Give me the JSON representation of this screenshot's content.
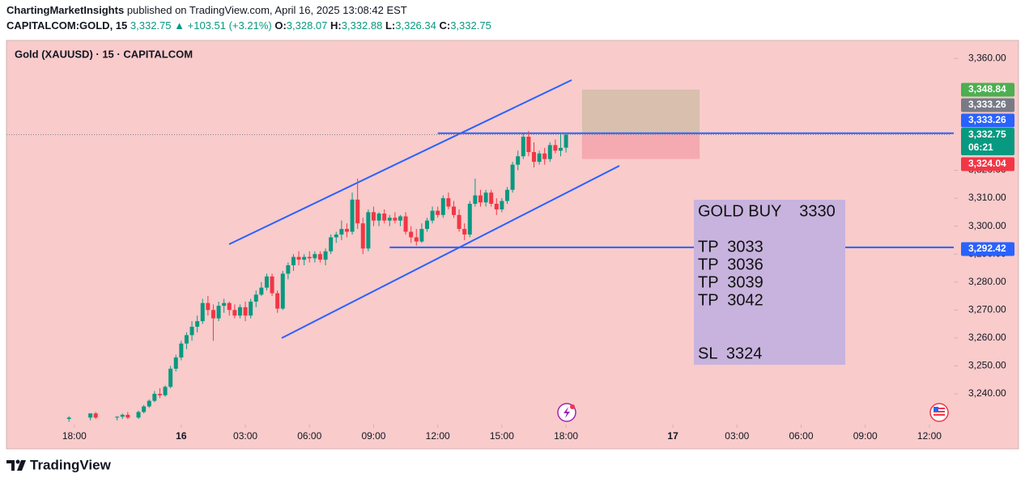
{
  "header": {
    "author": "ChartingMarketInsights",
    "published": "published on TradingView.com, April 16, 2025 13:08:42 EST",
    "symbol": "CAPITALCOM:GOLD, 15",
    "last": "3,332.75",
    "arrow": "▲",
    "change": "+103.51 (+3.21%)",
    "o_label": "O:",
    "open": "3,328.07",
    "h_label": "H:",
    "high": "3,332.88",
    "l_label": "L:",
    "low": "3,326.34",
    "c_label": "C:",
    "close": "3,332.75"
  },
  "footer": {
    "brand": "TradingView"
  },
  "chart_data": {
    "type": "candlestick",
    "title": "Gold (XAUUSD) · 15 · CAPITALCOM",
    "up_color": "#089981",
    "down_color": "#f23645",
    "x": [
      -1,
      3,
      4,
      8,
      9,
      10,
      12,
      13,
      14,
      15,
      16,
      17,
      18,
      19,
      20,
      21,
      22,
      23,
      24,
      25,
      26,
      27,
      28,
      29,
      30,
      31,
      32,
      33,
      34,
      35,
      36,
      37,
      38,
      39,
      40,
      41,
      42,
      43,
      44,
      45,
      46,
      47,
      48,
      49,
      50,
      51,
      52,
      53,
      54,
      55,
      56,
      57,
      58,
      59,
      60,
      61,
      62,
      63,
      64,
      65,
      66,
      67,
      68,
      69,
      70,
      71,
      72,
      73,
      74,
      75,
      76,
      77,
      78,
      79,
      80,
      81,
      82,
      83,
      84,
      85,
      86,
      87,
      88,
      89,
      90,
      91,
      92
    ],
    "open": [
      3231,
      3231.5,
      3233,
      3231.5,
      3231.8,
      3232.5,
      3231.5,
      3233.5,
      3235.5,
      3237.5,
      3240,
      3239.5,
      3242.5,
      3249,
      3253,
      3258,
      3261,
      3264,
      3266,
      3272.5,
      3270,
      3267,
      3271.5,
      3272.5,
      3270,
      3268,
      3271,
      3268,
      3273,
      3275.5,
      3278,
      3282,
      3276,
      3270.5,
      3283,
      3286,
      3289,
      3288,
      3289,
      3288.5,
      3290,
      3288,
      3291,
      3296,
      3297,
      3299,
      3298,
      3309.5,
      3301,
      3292,
      3305,
      3302,
      3304.5,
      3302,
      3303,
      3302,
      3303.5,
      3298,
      3296,
      3294.5,
      3299,
      3302,
      3305.5,
      3304,
      3310,
      3307,
      3304,
      3299,
      3297,
      3308,
      3311,
      3308.5,
      3312,
      3308,
      3306,
      3309,
      3313,
      3322,
      3325,
      3332,
      3326.5,
      3323,
      3326,
      3324,
      3329,
      3327,
      3328.07
    ],
    "high": [
      3232,
      3233,
      3233.5,
      3232,
      3233,
      3233.5,
      3234,
      3236,
      3238,
      3241,
      3242,
      3243,
      3250,
      3254,
      3259,
      3262,
      3266,
      3268,
      3274,
      3275,
      3272,
      3273,
      3274,
      3273,
      3272,
      3272,
      3273,
      3274,
      3277,
      3280,
      3283,
      3283,
      3277,
      3284,
      3287,
      3290,
      3291,
      3290,
      3291,
      3291,
      3291,
      3292,
      3297,
      3298,
      3302,
      3301,
      3312,
      3317,
      3303,
      3306,
      3307,
      3305,
      3306,
      3304,
      3305,
      3304,
      3305,
      3300,
      3299,
      3301,
      3303,
      3307,
      3307,
      3311,
      3312,
      3309,
      3306,
      3301,
      3309,
      3317,
      3313,
      3313,
      3313,
      3310,
      3310,
      3314,
      3323,
      3327,
      3333,
      3334,
      3330,
      3327,
      3328,
      3330,
      3331,
      3333,
      3332.88
    ],
    "low": [
      3230,
      3230.5,
      3231,
      3230.5,
      3231,
      3231,
      3231,
      3233,
      3235,
      3237,
      3238.5,
      3239,
      3242,
      3248,
      3252,
      3256,
      3259,
      3262,
      3265,
      3268,
      3259,
      3266,
      3269,
      3268,
      3267,
      3267,
      3266,
      3267,
      3271,
      3275,
      3277,
      3275,
      3269,
      3270,
      3281,
      3284,
      3286,
      3286,
      3287,
      3287,
      3287,
      3286,
      3290,
      3294,
      3295,
      3296,
      3297,
      3299,
      3290,
      3291,
      3300,
      3300,
      3301,
      3300,
      3301,
      3300,
      3297,
      3294,
      3293,
      3294,
      3298,
      3301,
      3303,
      3303,
      3306,
      3303,
      3298,
      3295,
      3296,
      3307,
      3307,
      3307,
      3307,
      3304,
      3305,
      3308,
      3312,
      3320,
      3324,
      3325,
      3321,
      3322,
      3322,
      3323,
      3326,
      3325,
      3326.34
    ],
    "close": [
      3231.5,
      3233,
      3231.5,
      3231.8,
      3232.5,
      3231.5,
      3233.5,
      3235.5,
      3237.5,
      3240,
      3239.5,
      3242.5,
      3249,
      3253,
      3258,
      3261,
      3264,
      3266,
      3272.5,
      3270,
      3267,
      3271.5,
      3272.5,
      3270,
      3268,
      3271,
      3268,
      3273,
      3275.5,
      3278,
      3282,
      3276,
      3270.5,
      3283,
      3286,
      3289,
      3288,
      3289,
      3288.5,
      3290,
      3288,
      3291,
      3296,
      3297,
      3299,
      3298,
      3309.5,
      3301,
      3292,
      3305,
      3302,
      3304.5,
      3302,
      3303,
      3302,
      3303.5,
      3298,
      3296,
      3294.5,
      3299,
      3302,
      3305.5,
      3304,
      3310,
      3307,
      3304,
      3299,
      3297,
      3308,
      3311,
      3308.5,
      3312,
      3308,
      3306,
      3309,
      3313,
      3322,
      3325,
      3332,
      3326.5,
      3323,
      3326,
      3324,
      3329,
      3327,
      3328,
      3332.75
    ],
    "xlim": [
      -12.7,
      164.1
    ],
    "xticks": [
      {
        "value": 0,
        "label": "18:00"
      },
      {
        "value": 20,
        "label": "16"
      },
      {
        "value": 32,
        "label": "03:00"
      },
      {
        "value": 44,
        "label": "06:00"
      },
      {
        "value": 56,
        "label": "09:00"
      },
      {
        "value": 68,
        "label": "12:00"
      },
      {
        "value": 80,
        "label": "15:00"
      },
      {
        "value": 92,
        "label": "18:00"
      },
      {
        "value": 112,
        "label": "17"
      },
      {
        "value": 124,
        "label": "03:00"
      },
      {
        "value": 136,
        "label": "06:00"
      },
      {
        "value": 148,
        "label": "09:00"
      },
      {
        "value": 160,
        "label": "12:00"
      }
    ],
    "ylim": [
      3229,
      3365
    ],
    "yticks": [
      {
        "value": 3240,
        "label": "3,240.00"
      },
      {
        "value": 3250,
        "label": "3,250.00"
      },
      {
        "value": 3260,
        "label": "3,260.00"
      },
      {
        "value": 3270,
        "label": "3,270.00"
      },
      {
        "value": 3280,
        "label": "3,280.00"
      },
      {
        "value": 3290,
        "label": "3,290.00"
      },
      {
        "value": 3300,
        "label": "3,300.00"
      },
      {
        "value": 3310,
        "label": "3,310.00"
      },
      {
        "value": 3320,
        "label": "3,320.00"
      },
      {
        "value": 3360,
        "label": "3,360.00"
      }
    ],
    "price_lines": [
      {
        "value": 3333.26,
        "start_x": 68,
        "color": "#2962ff"
      },
      {
        "value": 3292.42,
        "start_x": 59,
        "color": "#2962ff"
      }
    ],
    "position": {
      "target": 3348.84,
      "entry": 3333.26,
      "stop": 3324.04,
      "start_x": 95,
      "end_x": 117,
      "target_color": "#d9bfae",
      "stop_color": "#f5a9b0"
    },
    "price_tags": [
      {
        "value": 3348.84,
        "label": "3,348.84",
        "color": "#4caf50"
      },
      {
        "value": 3333.26,
        "label": "3,333.26",
        "color": "#787b86"
      },
      {
        "value": 3333.26,
        "label": "3,333.26",
        "color": "#2962ff"
      },
      {
        "value": 3332.75,
        "label": "3,332.75",
        "color": "#089981",
        "countdown": "06:21"
      },
      {
        "value": 3324.04,
        "label": "3,324.04",
        "color": "#f23645"
      },
      {
        "value": 3292.42,
        "label": "3,292.42",
        "color": "#2962ff"
      }
    ],
    "note": [
      "GOLD BUY    3330",
      "TP  3033",
      "TP  3036",
      "TP  3039",
      "TP  3042",
      "SL  3324"
    ]
  }
}
